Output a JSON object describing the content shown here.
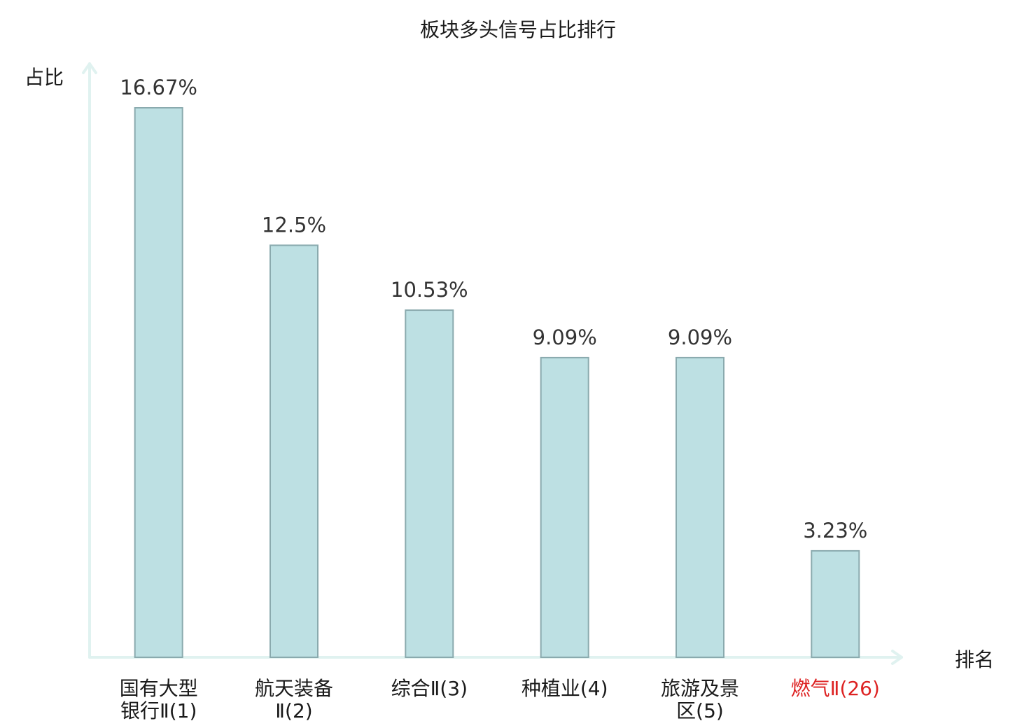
{
  "chart_data": {
    "type": "bar",
    "title": "板块多头信号占比排行",
    "ylabel": "占比",
    "xlabel": "排名",
    "categories": [
      [
        "国有大型",
        "银行Ⅱ(1)"
      ],
      [
        "航天装备",
        "Ⅱ(2)"
      ],
      [
        "综合Ⅱ(3)"
      ],
      [
        "种植业(4)"
      ],
      [
        "旅游及景",
        "区(5)"
      ],
      [
        "燃气Ⅱ(26)"
      ]
    ],
    "values": [
      16.67,
      12.5,
      10.53,
      9.09,
      9.09,
      3.23
    ],
    "value_labels": [
      "16.67%",
      "12.5%",
      "10.53%",
      "9.09%",
      "9.09%",
      "3.23%"
    ],
    "ylim": [
      0,
      16.67
    ],
    "grid": false,
    "highlight_index": 5,
    "colors": {
      "bar_fill": "#bde0e3",
      "bar_stroke": "#8aaaae",
      "axis": "#e0f2f0",
      "highlight_text": "#dd2222",
      "text": "#1a1a1a"
    }
  }
}
